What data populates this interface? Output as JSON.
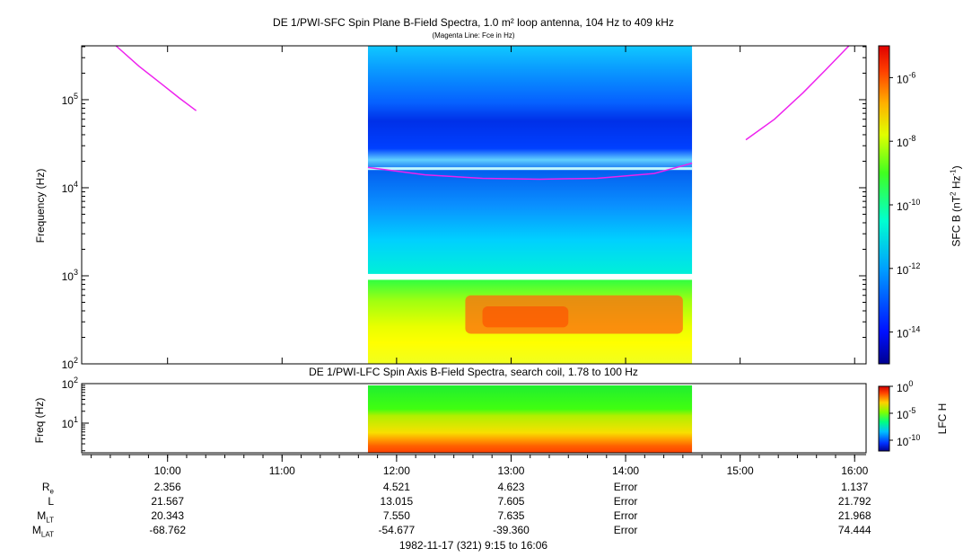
{
  "chart_data": [
    {
      "type": "heatmap",
      "title": "DE 1/PWI-SFC  Spin Plane B-Field Spectra, 1.0 m² loop antenna, 104 Hz to 409 kHz",
      "subtitle": "(Magenta Line: Fce in Hz)",
      "ylabel": "Frequency (Hz)",
      "yscale": "log",
      "ylim": [
        100,
        409000
      ],
      "y_ticks": [
        {
          "value": 100,
          "base": "10",
          "exp": "2"
        },
        {
          "value": 1000,
          "base": "10",
          "exp": "3"
        },
        {
          "value": 10000,
          "base": "10",
          "exp": "4"
        },
        {
          "value": 100000,
          "base": "10",
          "exp": "5"
        }
      ],
      "xlim_hours": [
        9.25,
        16.1
      ],
      "data_interval_hours": [
        11.75,
        14.58
      ],
      "data_gap_hz": [
        900,
        1050
      ],
      "colorbar": {
        "label": "SFC B (nT² Hz⁻¹)",
        "label_main": "SFC B (nT",
        "label_sup1": "2",
        "label_mid": " Hz",
        "label_sup2": "-1",
        "label_end": ")",
        "scale": "log",
        "range": [
          1e-15,
          1e-05
        ],
        "ticks": [
          {
            "base": "10",
            "exp": "-6",
            "value": 1e-06
          },
          {
            "base": "10",
            "exp": "-8",
            "value": 1e-08
          },
          {
            "base": "10",
            "exp": "-10",
            "value": 1e-10
          },
          {
            "base": "10",
            "exp": "-12",
            "value": 1e-12
          },
          {
            "base": "10",
            "exp": "-14",
            "value": 1e-14
          }
        ]
      },
      "fce_line_segments": [
        {
          "x_hours": [
            9.55,
            9.75,
            9.95,
            10.1,
            10.25
          ],
          "y_hz": [
            409000,
            240000,
            150000,
            105000,
            75000
          ]
        },
        {
          "x_hours": [
            11.75,
            12.25,
            12.75,
            13.25,
            13.75,
            14.25,
            14.58
          ],
          "y_hz": [
            17000,
            14000,
            12800,
            12500,
            12800,
            14500,
            19000
          ]
        },
        {
          "x_hours": [
            15.05,
            15.3,
            15.55,
            15.75,
            15.95
          ],
          "y_hz": [
            35000,
            60000,
            120000,
            220000,
            409000
          ]
        }
      ],
      "line_color": "#ee22ee"
    },
    {
      "type": "heatmap",
      "title": "DE 1/PWI-LFC  Spin Axis B-Field Spectra, search coil, 1.78 to 100 Hz",
      "ylabel": "Freq (Hz)",
      "yscale": "log",
      "ylim": [
        1.78,
        100
      ],
      "y_ticks": [
        {
          "value": 10,
          "base": "10",
          "exp": "1"
        },
        {
          "value": 100,
          "base": "10",
          "exp": "2"
        }
      ],
      "data_interval_hours": [
        11.75,
        14.58
      ],
      "colorbar": {
        "label": "LFC H",
        "scale": "log",
        "range": [
          1e-12,
          1
        ],
        "ticks": [
          {
            "base": "10",
            "exp": "0",
            "value": 1
          },
          {
            "base": "10",
            "exp": "-5",
            "value": 1e-05
          },
          {
            "base": "10",
            "exp": "-10",
            "value": 1e-10
          }
        ]
      }
    }
  ],
  "x_axis": {
    "ticks": [
      {
        "label": "10:00",
        "hours": 10
      },
      {
        "label": "11:00",
        "hours": 11
      },
      {
        "label": "12:00",
        "hours": 12
      },
      {
        "label": "13:00",
        "hours": 13
      },
      {
        "label": "14:00",
        "hours": 14
      },
      {
        "label": "15:00",
        "hours": 15
      },
      {
        "label": "16:00",
        "hours": 16
      }
    ]
  },
  "ephemeris": {
    "rows": [
      {
        "label": "R",
        "sub": "e",
        "values": [
          "2.356",
          "4.521",
          "4.623",
          "Error",
          "1.137"
        ]
      },
      {
        "label": "L",
        "sub": "",
        "values": [
          "21.567",
          "13.015",
          "7.605",
          "Error",
          "21.792"
        ]
      },
      {
        "label": "M",
        "sub": "LT",
        "values": [
          "20.343",
          "7.550",
          "7.635",
          "Error",
          "21.968"
        ]
      },
      {
        "label": "M",
        "sub": "LAT",
        "values": [
          "-68.762",
          "-54.677",
          "-39.360",
          "Error",
          "74.444"
        ]
      }
    ],
    "value_hours": [
      10,
      12,
      13,
      14,
      16
    ]
  },
  "footer": "1982-11-17 (321) 9:15 to 16:06"
}
